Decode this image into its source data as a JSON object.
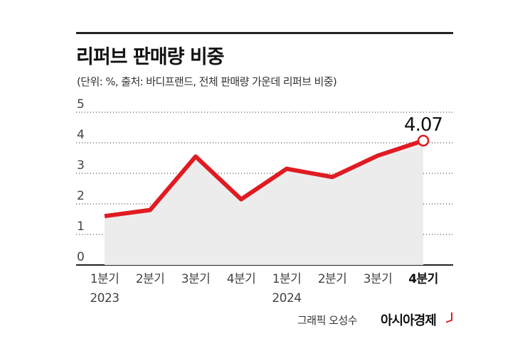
{
  "chart_data": {
    "type": "line",
    "title": "리퍼브 판매량 비중",
    "subtitle": "(단위: %, 출처: 바디프랜드, 전체 판매량 가운데 리퍼브 비중)",
    "categories": [
      "1분기",
      "2분기",
      "3분기",
      "4분기",
      "1분기",
      "2분기",
      "3분기",
      "4분기"
    ],
    "years": [
      {
        "label": "2023",
        "category_index": 0
      },
      {
        "label": "2024",
        "category_index": 4
      }
    ],
    "series": [
      {
        "name": "리퍼브 판매량 비중",
        "values": [
          1.6,
          1.8,
          3.55,
          2.15,
          3.15,
          2.88,
          3.58,
          4.07
        ]
      }
    ],
    "highlight": {
      "index": 7,
      "label": "4.07"
    },
    "ylim": [
      0,
      5
    ],
    "yticks": [
      "0",
      "1",
      "2",
      "3",
      "4",
      "5"
    ],
    "xlabel": "",
    "ylabel": "",
    "grid": true,
    "colors": {
      "line": "#e01b22",
      "area": "#ececec",
      "grid": "#222222",
      "axis": "#222222"
    }
  },
  "credit": "그래픽 오성수",
  "brand": "아시아경제"
}
